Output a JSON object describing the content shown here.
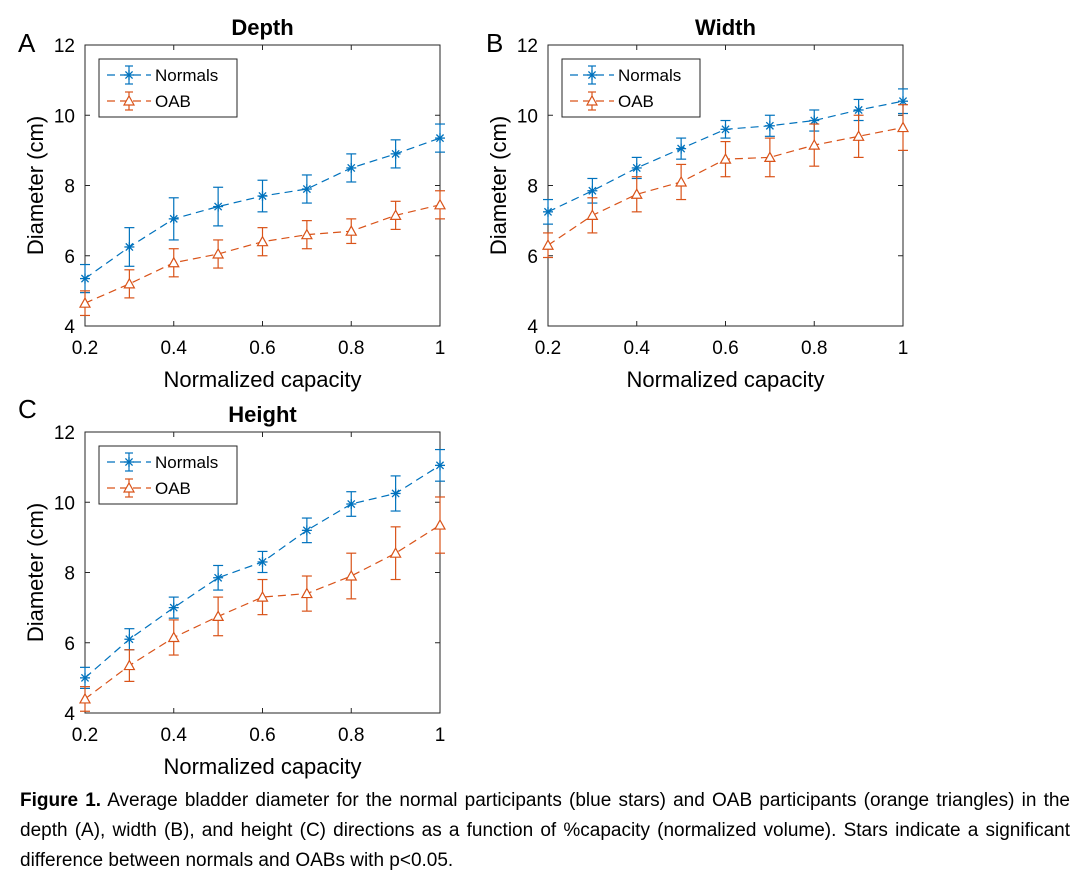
{
  "chart_data": [
    {
      "panel": "A",
      "type": "line",
      "title": "Depth",
      "xlabel": "Normalized capacity",
      "ylabel": "Diameter (cm)",
      "xlim": [
        0.2,
        1
      ],
      "ylim": [
        4,
        12
      ],
      "xticks": [
        "0.2",
        "0.4",
        "0.6",
        "0.8",
        "1"
      ],
      "yticks": [
        "4",
        "6",
        "8",
        "10",
        "12"
      ],
      "legend_position": "top-left",
      "x": [
        0.2,
        0.3,
        0.4,
        0.5,
        0.6,
        0.7,
        0.8,
        0.9,
        1.0
      ],
      "series": [
        {
          "name": "Normals",
          "marker": "star",
          "color": "#0072BD",
          "values": [
            5.35,
            6.25,
            7.05,
            7.4,
            7.7,
            7.9,
            8.5,
            8.9,
            9.35
          ],
          "error": [
            0.4,
            0.55,
            0.6,
            0.55,
            0.45,
            0.4,
            0.4,
            0.4,
            0.4
          ]
        },
        {
          "name": "OAB",
          "marker": "triangle",
          "color": "#D95319",
          "values": [
            4.65,
            5.2,
            5.8,
            6.05,
            6.4,
            6.6,
            6.7,
            7.15,
            7.45
          ],
          "error": [
            0.35,
            0.4,
            0.4,
            0.4,
            0.4,
            0.4,
            0.35,
            0.4,
            0.4
          ]
        }
      ]
    },
    {
      "panel": "B",
      "type": "line",
      "title": "Width",
      "xlabel": "Normalized capacity",
      "ylabel": "Diameter (cm)",
      "xlim": [
        0.2,
        1
      ],
      "ylim": [
        4,
        12
      ],
      "xticks": [
        "0.2",
        "0.4",
        "0.6",
        "0.8",
        "1"
      ],
      "yticks": [
        "4",
        "6",
        "8",
        "10",
        "12"
      ],
      "legend_position": "top-left",
      "x": [
        0.2,
        0.3,
        0.4,
        0.5,
        0.6,
        0.7,
        0.8,
        0.9,
        1.0
      ],
      "series": [
        {
          "name": "Normals",
          "marker": "star",
          "color": "#0072BD",
          "values": [
            7.25,
            7.85,
            8.5,
            9.05,
            9.6,
            9.7,
            9.85,
            10.15,
            10.4
          ],
          "error": [
            0.35,
            0.35,
            0.3,
            0.3,
            0.25,
            0.3,
            0.3,
            0.3,
            0.35
          ]
        },
        {
          "name": "OAB",
          "marker": "triangle",
          "color": "#D95319",
          "values": [
            6.3,
            7.15,
            7.75,
            8.1,
            8.75,
            8.8,
            9.15,
            9.4,
            9.65
          ],
          "error": [
            0.35,
            0.5,
            0.5,
            0.5,
            0.5,
            0.55,
            0.6,
            0.6,
            0.65
          ]
        }
      ]
    },
    {
      "panel": "C",
      "type": "line",
      "title": "Height",
      "xlabel": "Normalized capacity",
      "ylabel": "Diameter (cm)",
      "xlim": [
        0.2,
        1
      ],
      "ylim": [
        4,
        12
      ],
      "xticks": [
        "0.2",
        "0.4",
        "0.6",
        "0.8",
        "1"
      ],
      "yticks": [
        "4",
        "6",
        "8",
        "10",
        "12"
      ],
      "legend_position": "top-left",
      "x": [
        0.2,
        0.3,
        0.4,
        0.5,
        0.6,
        0.7,
        0.8,
        0.9,
        1.0
      ],
      "series": [
        {
          "name": "Normals",
          "marker": "star",
          "color": "#0072BD",
          "values": [
            5.0,
            6.1,
            7.0,
            7.85,
            8.3,
            9.2,
            9.95,
            10.25,
            11.05
          ],
          "error": [
            0.3,
            0.3,
            0.3,
            0.35,
            0.3,
            0.35,
            0.35,
            0.5,
            0.45
          ]
        },
        {
          "name": "OAB",
          "marker": "triangle",
          "color": "#D95319",
          "values": [
            4.4,
            5.35,
            6.15,
            6.75,
            7.3,
            7.4,
            7.9,
            8.55,
            9.35
          ],
          "error": [
            0.35,
            0.45,
            0.5,
            0.55,
            0.5,
            0.5,
            0.65,
            0.75,
            0.8
          ]
        }
      ]
    }
  ],
  "caption": {
    "label": "Figure 1.",
    "text": " Average bladder diameter for the normal participants (blue stars) and OAB participants (orange triangles) in the depth (A), width (B), and height (C) directions as a function of %capacity (normalized volume). Stars indicate a significant difference between normals and OABs with p<0.05."
  }
}
